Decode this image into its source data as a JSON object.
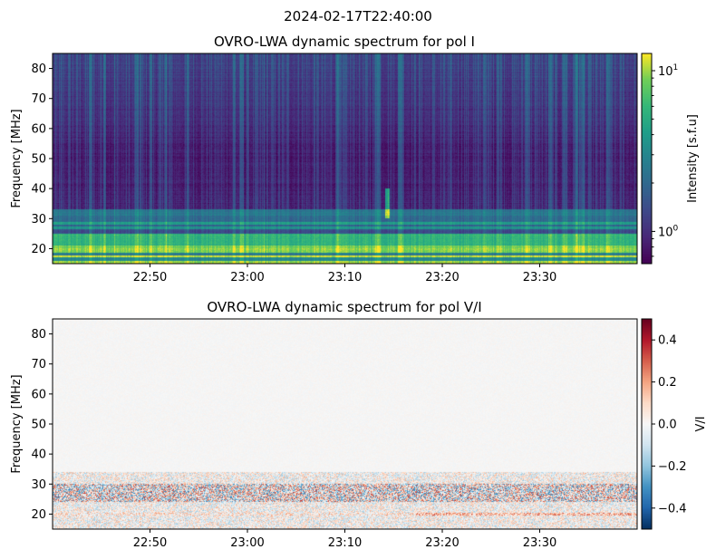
{
  "suptitle": "2024-02-17T22:40:00",
  "chart_data": [
    {
      "type": "heatmap",
      "title": "OVRO-LWA dynamic spectrum for pol I",
      "xlabel": "",
      "ylabel": "Frequency [MHz]",
      "x_range": [
        "22:40",
        "23:40"
      ],
      "x_ticks": [
        "22:50",
        "23:00",
        "23:10",
        "23:20",
        "23:30"
      ],
      "ylim": [
        15,
        85
      ],
      "y_ticks": [
        20,
        30,
        40,
        50,
        60,
        70,
        80
      ],
      "colormap": "viridis",
      "color_scale": "log",
      "colorbar": {
        "label": "Intensity [s.f.u]",
        "range": [
          0.63,
          12.8
        ],
        "ticks": [
          "10^0",
          "10^1"
        ]
      },
      "features": [
        {
          "freq_MHz": [
            15,
            25
          ],
          "intensity": "high (~5-10 s.f.u), brightest near 16-20 MHz"
        },
        {
          "freq_MHz": [
            25,
            33
          ],
          "intensity": "moderate banded (~1.5-4 s.f.u)"
        },
        {
          "freq_MHz": [
            33,
            85
          ],
          "intensity": "low (~0.7-1.3 s.f.u) with vertical striations"
        },
        {
          "time": "23:14",
          "freq_MHz": [
            30,
            40
          ],
          "intensity": "short bright burst"
        }
      ]
    },
    {
      "type": "heatmap",
      "title": "OVRO-LWA dynamic spectrum for pol V/I",
      "xlabel": "",
      "ylabel": "Frequency [MHz]",
      "x_range": [
        "22:40",
        "23:40"
      ],
      "x_ticks": [
        "22:50",
        "23:00",
        "23:10",
        "23:20",
        "23:30"
      ],
      "ylim": [
        15,
        85
      ],
      "y_ticks": [
        20,
        30,
        40,
        50,
        60,
        70,
        80
      ],
      "colormap": "RdBu_r",
      "color_scale": "linear",
      "colorbar": {
        "label": "V/I",
        "range": [
          -0.5,
          0.5
        ],
        "ticks": [
          "0.4",
          "0.2",
          "0.0",
          "−0.2",
          "−0.4"
        ]
      },
      "features": [
        {
          "freq_MHz": [
            15,
            33
          ],
          "value": "mixed ±0.2-0.5 fluctuations"
        },
        {
          "freq_MHz": [
            33,
            85
          ],
          "value": "near 0"
        }
      ]
    }
  ]
}
